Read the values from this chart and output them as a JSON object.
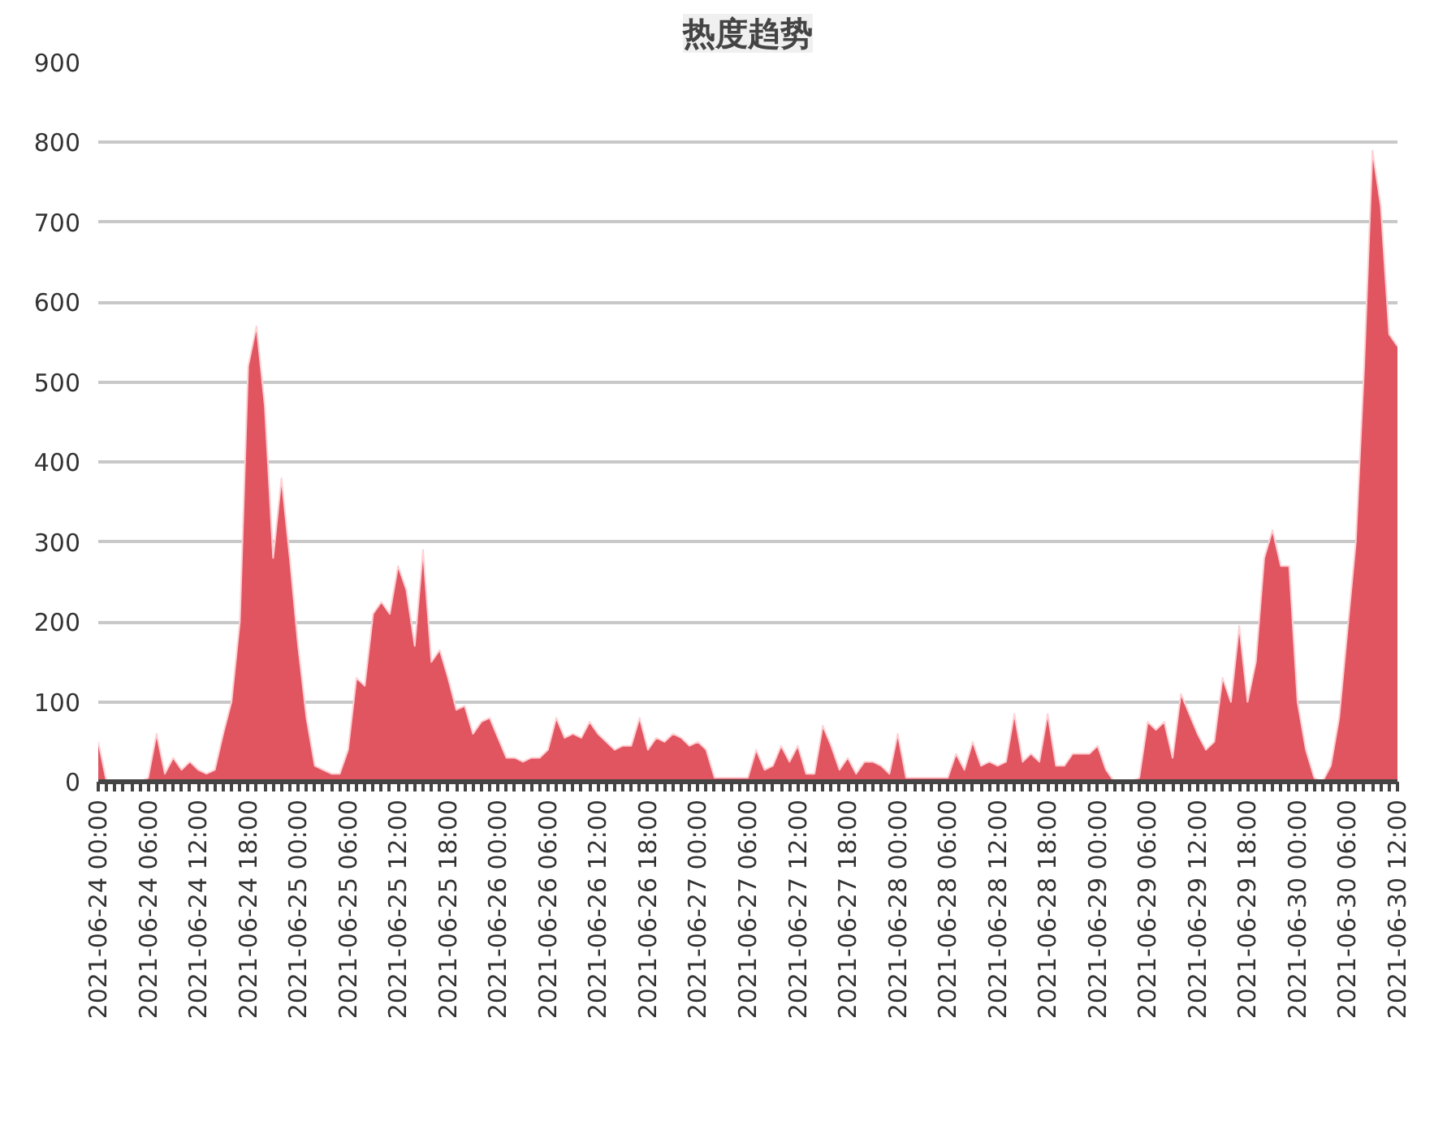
{
  "chart_data": {
    "type": "area",
    "title": "热度趋势",
    "x": [
      "2021-06-24T00:00",
      "2021-06-24T01:00",
      "2021-06-24T02:00",
      "2021-06-24T03:00",
      "2021-06-24T04:00",
      "2021-06-24T05:00",
      "2021-06-24T06:00",
      "2021-06-24T07:00",
      "2021-06-24T08:00",
      "2021-06-24T09:00",
      "2021-06-24T10:00",
      "2021-06-24T11:00",
      "2021-06-24T12:00",
      "2021-06-24T13:00",
      "2021-06-24T14:00",
      "2021-06-24T15:00",
      "2021-06-24T16:00",
      "2021-06-24T17:00",
      "2021-06-24T18:00",
      "2021-06-24T19:00",
      "2021-06-24T20:00",
      "2021-06-24T21:00",
      "2021-06-24T22:00",
      "2021-06-24T23:00",
      "2021-06-25T00:00",
      "2021-06-25T01:00",
      "2021-06-25T02:00",
      "2021-06-25T03:00",
      "2021-06-25T04:00",
      "2021-06-25T05:00",
      "2021-06-25T06:00",
      "2021-06-25T07:00",
      "2021-06-25T08:00",
      "2021-06-25T09:00",
      "2021-06-25T10:00",
      "2021-06-25T11:00",
      "2021-06-25T12:00",
      "2021-06-25T13:00",
      "2021-06-25T14:00",
      "2021-06-25T15:00",
      "2021-06-25T16:00",
      "2021-06-25T17:00",
      "2021-06-25T18:00",
      "2021-06-25T19:00",
      "2021-06-25T20:00",
      "2021-06-25T21:00",
      "2021-06-25T22:00",
      "2021-06-25T23:00",
      "2021-06-26T00:00",
      "2021-06-26T01:00",
      "2021-06-26T02:00",
      "2021-06-26T03:00",
      "2021-06-26T04:00",
      "2021-06-26T05:00",
      "2021-06-26T06:00",
      "2021-06-26T07:00",
      "2021-06-26T08:00",
      "2021-06-26T09:00",
      "2021-06-26T10:00",
      "2021-06-26T11:00",
      "2021-06-26T12:00",
      "2021-06-26T13:00",
      "2021-06-26T14:00",
      "2021-06-26T15:00",
      "2021-06-26T16:00",
      "2021-06-26T17:00",
      "2021-06-26T18:00",
      "2021-06-26T19:00",
      "2021-06-26T20:00",
      "2021-06-26T21:00",
      "2021-06-26T22:00",
      "2021-06-26T23:00",
      "2021-06-27T00:00",
      "2021-06-27T01:00",
      "2021-06-27T02:00",
      "2021-06-27T03:00",
      "2021-06-27T04:00",
      "2021-06-27T05:00",
      "2021-06-27T06:00",
      "2021-06-27T07:00",
      "2021-06-27T08:00",
      "2021-06-27T09:00",
      "2021-06-27T10:00",
      "2021-06-27T11:00",
      "2021-06-27T12:00",
      "2021-06-27T13:00",
      "2021-06-27T14:00",
      "2021-06-27T15:00",
      "2021-06-27T16:00",
      "2021-06-27T17:00",
      "2021-06-27T18:00",
      "2021-06-27T19:00",
      "2021-06-27T20:00",
      "2021-06-27T21:00",
      "2021-06-27T22:00",
      "2021-06-27T23:00",
      "2021-06-28T00:00",
      "2021-06-28T01:00",
      "2021-06-28T02:00",
      "2021-06-28T03:00",
      "2021-06-28T04:00",
      "2021-06-28T05:00",
      "2021-06-28T06:00",
      "2021-06-28T07:00",
      "2021-06-28T08:00",
      "2021-06-28T09:00",
      "2021-06-28T10:00",
      "2021-06-28T11:00",
      "2021-06-28T12:00",
      "2021-06-28T13:00",
      "2021-06-28T14:00",
      "2021-06-28T15:00",
      "2021-06-28T16:00",
      "2021-06-28T17:00",
      "2021-06-28T18:00",
      "2021-06-28T19:00",
      "2021-06-28T20:00",
      "2021-06-28T21:00",
      "2021-06-28T22:00",
      "2021-06-28T23:00",
      "2021-06-29T00:00",
      "2021-06-29T01:00",
      "2021-06-29T02:00",
      "2021-06-29T03:00",
      "2021-06-29T04:00",
      "2021-06-29T05:00",
      "2021-06-29T06:00",
      "2021-06-29T07:00",
      "2021-06-29T08:00",
      "2021-06-29T09:00",
      "2021-06-29T10:00",
      "2021-06-29T11:00",
      "2021-06-29T12:00",
      "2021-06-29T13:00",
      "2021-06-29T14:00",
      "2021-06-29T15:00",
      "2021-06-29T16:00",
      "2021-06-29T17:00",
      "2021-06-29T18:00",
      "2021-06-29T19:00",
      "2021-06-29T20:00",
      "2021-06-29T21:00",
      "2021-06-29T22:00",
      "2021-06-29T23:00",
      "2021-06-30T00:00",
      "2021-06-30T01:00",
      "2021-06-30T02:00",
      "2021-06-30T03:00",
      "2021-06-30T04:00",
      "2021-06-30T05:00",
      "2021-06-30T06:00",
      "2021-06-30T07:00",
      "2021-06-30T08:00",
      "2021-06-30T09:00",
      "2021-06-30T10:00",
      "2021-06-30T11:00",
      "2021-06-30T12:00"
    ],
    "values": [
      50,
      0,
      0,
      0,
      0,
      0,
      5,
      60,
      10,
      30,
      15,
      25,
      15,
      10,
      15,
      60,
      100,
      200,
      520,
      570,
      470,
      280,
      380,
      280,
      170,
      80,
      20,
      15,
      10,
      10,
      40,
      130,
      120,
      210,
      225,
      210,
      270,
      240,
      170,
      290,
      150,
      165,
      130,
      90,
      95,
      60,
      75,
      80,
      55,
      30,
      30,
      25,
      30,
      30,
      40,
      80,
      55,
      60,
      55,
      75,
      60,
      50,
      40,
      45,
      45,
      80,
      40,
      55,
      50,
      60,
      55,
      45,
      50,
      40,
      5,
      5,
      5,
      5,
      5,
      40,
      15,
      20,
      45,
      25,
      45,
      10,
      10,
      70,
      45,
      15,
      30,
      10,
      25,
      25,
      20,
      10,
      60,
      5,
      5,
      5,
      5,
      5,
      5,
      35,
      15,
      50,
      20,
      25,
      20,
      25,
      85,
      25,
      35,
      25,
      85,
      20,
      20,
      35,
      35,
      35,
      45,
      15,
      0,
      0,
      0,
      5,
      75,
      65,
      75,
      30,
      110,
      85,
      60,
      40,
      50,
      130,
      100,
      195,
      100,
      150,
      280,
      315,
      270,
      270,
      100,
      40,
      5,
      0,
      20,
      80,
      190,
      300,
      520,
      790,
      720,
      560,
      545
    ],
    "color": "#e05560",
    "xlim": [
      "2021-06-24T00:00",
      "2021-06-30T12:00"
    ],
    "xticks": [
      {
        "value": "2021-06-24T00:00",
        "label": "2021-06-24 00:00"
      },
      {
        "value": "2021-06-24T06:00",
        "label": "2021-06-24 06:00"
      },
      {
        "value": "2021-06-24T12:00",
        "label": "2021-06-24 12:00"
      },
      {
        "value": "2021-06-24T18:00",
        "label": "2021-06-24 18:00"
      },
      {
        "value": "2021-06-25T00:00",
        "label": "2021-06-25 00:00"
      },
      {
        "value": "2021-06-25T06:00",
        "label": "2021-06-25 06:00"
      },
      {
        "value": "2021-06-25T12:00",
        "label": "2021-06-25 12:00"
      },
      {
        "value": "2021-06-25T18:00",
        "label": "2021-06-25 18:00"
      },
      {
        "value": "2021-06-26T00:00",
        "label": "2021-06-26 00:00"
      },
      {
        "value": "2021-06-26T06:00",
        "label": "2021-06-26 06:00"
      },
      {
        "value": "2021-06-26T12:00",
        "label": "2021-06-26 12:00"
      },
      {
        "value": "2021-06-26T18:00",
        "label": "2021-06-26 18:00"
      },
      {
        "value": "2021-06-27T00:00",
        "label": "2021-06-27 00:00"
      },
      {
        "value": "2021-06-27T06:00",
        "label": "2021-06-27 06:00"
      },
      {
        "value": "2021-06-27T12:00",
        "label": "2021-06-27 12:00"
      },
      {
        "value": "2021-06-27T18:00",
        "label": "2021-06-27 18:00"
      },
      {
        "value": "2021-06-28T00:00",
        "label": "2021-06-28 00:00"
      },
      {
        "value": "2021-06-28T06:00",
        "label": "2021-06-28 06:00"
      },
      {
        "value": "2021-06-28T12:00",
        "label": "2021-06-28 12:00"
      },
      {
        "value": "2021-06-28T18:00",
        "label": "2021-06-28 18:00"
      },
      {
        "value": "2021-06-29T00:00",
        "label": "2021-06-29 00:00"
      },
      {
        "value": "2021-06-29T06:00",
        "label": "2021-06-29 06:00"
      },
      {
        "value": "2021-06-29T12:00",
        "label": "2021-06-29 12:00"
      },
      {
        "value": "2021-06-29T18:00",
        "label": "2021-06-29 18:00"
      },
      {
        "value": "2021-06-30T00:00",
        "label": "2021-06-30 00:00"
      },
      {
        "value": "2021-06-30T06:00",
        "label": "2021-06-30 06:00"
      },
      {
        "value": "2021-06-30T12:00",
        "label": "2021-06-30 12:00"
      }
    ],
    "ylim": [
      0,
      900
    ],
    "yticks": [
      0,
      100,
      200,
      300,
      400,
      500,
      600,
      700,
      800,
      900
    ],
    "grid": "y"
  }
}
